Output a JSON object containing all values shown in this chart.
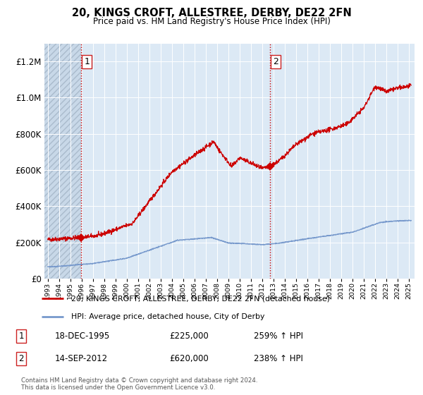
{
  "title": "20, KINGS CROFT, ALLESTREE, DERBY, DE22 2FN",
  "subtitle": "Price paid vs. HM Land Registry's House Price Index (HPI)",
  "legend_line1": "20, KINGS CROFT, ALLESTREE, DERBY, DE22 2FN (detached house)",
  "legend_line2": "HPI: Average price, detached house, City of Derby",
  "footer": "Contains HM Land Registry data © Crown copyright and database right 2024.\nThis data is licensed under the Open Government Licence v3.0.",
  "annotation1_date": "18-DEC-1995",
  "annotation1_price": "£225,000",
  "annotation1_hpi": "259% ↑ HPI",
  "annotation2_date": "14-SEP-2012",
  "annotation2_price": "£620,000",
  "annotation2_hpi": "238% ↑ HPI",
  "red_color": "#cc0000",
  "blue_color": "#7799cc",
  "bg_color": "#dce9f5",
  "hatch_bg": "#c8d8e8",
  "ylim": [
    0,
    1300000
  ],
  "yticks": [
    0,
    200000,
    400000,
    600000,
    800000,
    1000000,
    1200000
  ],
  "xlim_start": 1992.7,
  "xlim_end": 2025.5,
  "sale1_x": 1995.96,
  "sale1_y": 225000,
  "sale2_x": 2012.71,
  "sale2_y": 620000,
  "vline1_x": 1995.96,
  "vline2_x": 2012.71
}
